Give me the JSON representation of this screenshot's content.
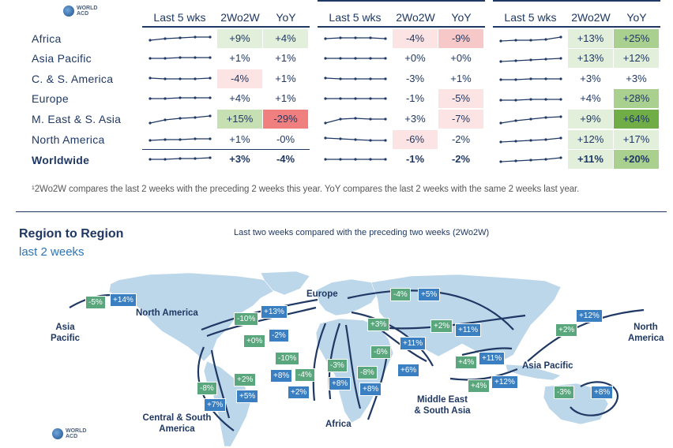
{
  "brand": {
    "logo_text_1": "WORLD",
    "logo_text_2": "ACD"
  },
  "table": {
    "groups": [
      {
        "headers": [
          "Last 5 wks",
          "2Wo2W",
          "YoY"
        ]
      },
      {
        "headers": [
          "Last 5 wks",
          "2Wo2W",
          "YoY"
        ]
      },
      {
        "headers": [
          "Last 5 wks",
          "2Wo2W",
          "YoY"
        ]
      }
    ],
    "rows": [
      {
        "region": "Africa",
        "g1": [
          "+9%",
          "+4%"
        ],
        "g2": [
          "-4%",
          "-9%"
        ],
        "g3": [
          "+13%",
          "+25%"
        ]
      },
      {
        "region": "Asia Pacific",
        "g1": [
          "+1%",
          "+1%"
        ],
        "g2": [
          "+0%",
          "+0%"
        ],
        "g3": [
          "+13%",
          "+12%"
        ]
      },
      {
        "region": "C. & S. America",
        "g1": [
          "-4%",
          "+1%"
        ],
        "g2": [
          "-3%",
          "+1%"
        ],
        "g3": [
          "+3%",
          "+3%"
        ]
      },
      {
        "region": "Europe",
        "g1": [
          "+4%",
          "+1%"
        ],
        "g2": [
          "-1%",
          "-5%"
        ],
        "g3": [
          "+4%",
          "+28%"
        ]
      },
      {
        "region": "M. East & S. Asia",
        "g1": [
          "+15%",
          "-29%"
        ],
        "g2": [
          "+3%",
          "-7%"
        ],
        "g3": [
          "+9%",
          "+64%"
        ]
      },
      {
        "region": "North America",
        "g1": [
          "+1%",
          "-0%"
        ],
        "g2": [
          "-6%",
          "-2%"
        ],
        "g3": [
          "+12%",
          "+17%"
        ]
      },
      {
        "region": "Worldwide",
        "g1": [
          "+3%",
          "-4%"
        ],
        "g2": [
          "-1%",
          "-2%"
        ],
        "g3": [
          "+11%",
          "+20%"
        ]
      }
    ]
  },
  "footnote": "¹2Wo2W compares the last 2 weeks with the preceding 2 weeks this year. YoY compares the last 2 weeks with the same 2 weeks last year.",
  "section": {
    "title": "Region to Region",
    "subtitle": "last 2 weeks",
    "chart_subtitle": "Last two weeks compared with the preceding two weeks (2Wo2W)"
  },
  "map": {
    "regions": {
      "asia_pacific_left": [
        "Asia",
        "Pacific"
      ],
      "north_america": "North America",
      "europe": "Europe",
      "north_america_right": [
        "North",
        "America"
      ],
      "asia_pacific": "Asia Pacific",
      "middle_east": [
        "Middle East",
        "& South Asia"
      ],
      "africa": "Africa",
      "central_south": [
        "Central & South",
        "America"
      ]
    },
    "badges": [
      {
        "id": "na-ap-out",
        "text": "-5%"
      },
      {
        "id": "na-ap-in",
        "text": "+14%"
      },
      {
        "id": "eu-na-1",
        "text": "-10%"
      },
      {
        "id": "eu-na-2",
        "text": "+13%"
      },
      {
        "id": "na-eu-1",
        "text": "+0%"
      },
      {
        "id": "na-eu-2",
        "text": "-2%"
      },
      {
        "id": "eu-ap-1",
        "text": "-4%"
      },
      {
        "id": "eu-ap-2",
        "text": "+5%"
      },
      {
        "id": "eu-me-1",
        "text": "+3%"
      },
      {
        "id": "eu-me-2",
        "text": "+11%"
      },
      {
        "id": "ap-eu-1",
        "text": "+2%"
      },
      {
        "id": "ap-eu-2",
        "text": "+11%"
      },
      {
        "id": "ap-na-1",
        "text": "+2%"
      },
      {
        "id": "ap-na-2",
        "text": "+12%"
      },
      {
        "id": "me-ap-1",
        "text": "+4%"
      },
      {
        "id": "me-ap-2",
        "text": "+11%"
      },
      {
        "id": "ap-me-1",
        "text": "+4%"
      },
      {
        "id": "ap-me-2",
        "text": "+12%"
      },
      {
        "id": "ap-ap-1",
        "text": "-3%"
      },
      {
        "id": "ap-ap-2",
        "text": "+8%"
      },
      {
        "id": "eu-af-1",
        "text": "-10%"
      },
      {
        "id": "eu-af-2",
        "text": "+8%"
      },
      {
        "id": "af-eu-1",
        "text": "-4%"
      },
      {
        "id": "af-eu-2",
        "text": "+2%"
      },
      {
        "id": "eu-af-3",
        "text": "-3%"
      },
      {
        "id": "eu-af-4",
        "text": "+8%"
      },
      {
        "id": "me-af-1",
        "text": "-8%"
      },
      {
        "id": "me-af-2",
        "text": "+8%"
      },
      {
        "id": "me-eu-1",
        "text": "-6%"
      },
      {
        "id": "me-eu-2",
        "text": "+6%"
      },
      {
        "id": "na-csa-1",
        "text": "-8%"
      },
      {
        "id": "na-csa-2",
        "text": "+7%"
      },
      {
        "id": "csa-na-1",
        "text": "+2%"
      },
      {
        "id": "csa-na-2",
        "text": "+5%"
      }
    ]
  }
}
